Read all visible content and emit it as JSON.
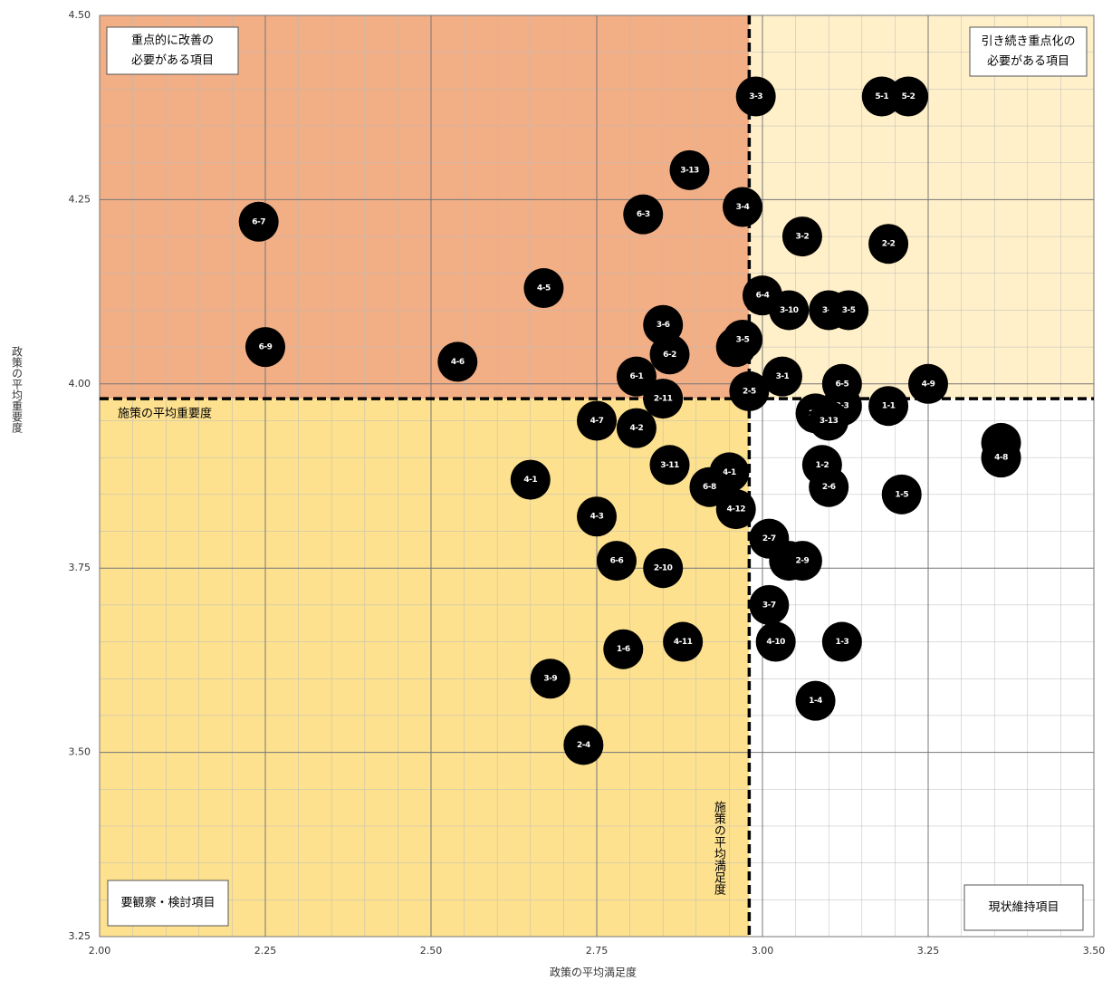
{
  "chart_data": {
    "type": "scatter",
    "xlabel": "政策の平均満足度",
    "ylabel": "政策の平均重要度",
    "xlim": [
      2.0,
      3.5
    ],
    "ylim": [
      3.25,
      4.5
    ],
    "xticks": [
      {
        "value": 2.0,
        "label": "2.00"
      },
      {
        "value": 2.25,
        "label": "2.25"
      },
      {
        "value": 2.5,
        "label": "2.50"
      },
      {
        "value": 2.75,
        "label": "2.75"
      },
      {
        "value": 3.0,
        "label": "3.00"
      },
      {
        "value": 3.25,
        "label": "3.25"
      },
      {
        "value": 3.5,
        "label": "3.50"
      }
    ],
    "yticks": [
      {
        "value": 3.25,
        "label": "3.25"
      },
      {
        "value": 3.5,
        "label": "3.50"
      },
      {
        "value": 3.75,
        "label": "3.75"
      },
      {
        "value": 4.0,
        "label": "4.00"
      },
      {
        "value": 4.25,
        "label": "4.25"
      },
      {
        "value": 4.5,
        "label": "4.50"
      }
    ],
    "grid": true,
    "average_x": 2.98,
    "average_x_label": "施策の平均満足度",
    "average_y": 3.98,
    "average_y_label": "施策の平均重要度",
    "quadrants": {
      "top_left": {
        "lines": [
          "重点的に改善の",
          "必要がある項目"
        ],
        "color": "#f2ae85"
      },
      "top_right": {
        "lines": [
          "引き続き重点化の",
          "必要がある項目"
        ],
        "color": "#fff0c9"
      },
      "bottom_left": {
        "lines": [
          "要観察・検討項目"
        ],
        "color": "#fde18f"
      },
      "bottom_right": {
        "lines": [
          "現状維持項目"
        ],
        "color": "#ffffff"
      }
    },
    "series": [
      {
        "name": "施策",
        "color": "#000000",
        "labels": [
          "3-3",
          "5-1",
          "5-2",
          "3-13",
          "3-4",
          "6-7",
          "6-3",
          "3-2",
          "2-2",
          "4-5",
          "6-4",
          "3-10",
          "3-8",
          "3-5",
          "3-6",
          "6-9",
          "3-3",
          "3-5",
          "6-2",
          "4-6",
          "6-1",
          "3-1",
          "4-9",
          "6-5",
          "2-5",
          "2-11",
          "1-1",
          "2-3",
          "2-1",
          "3-13",
          "4-7",
          "4-2",
          "3-12",
          "4-8",
          "3-11",
          "1-2",
          "4-1",
          "4-1",
          "6-8",
          "2-6",
          "1-5",
          "4-12",
          "4-3",
          "2-7",
          "2-8",
          "2-9",
          "6-6",
          "2-10",
          "3-7",
          "4-10",
          "1-3",
          "4-11",
          "1-6",
          "3-9",
          "1-4",
          "2-4"
        ],
        "x": [
          2.99,
          3.18,
          3.22,
          2.89,
          2.97,
          2.24,
          2.82,
          3.06,
          3.19,
          2.67,
          3.0,
          3.04,
          3.1,
          3.13,
          2.85,
          2.25,
          2.96,
          2.97,
          2.86,
          2.54,
          2.81,
          3.03,
          3.25,
          3.12,
          2.98,
          2.85,
          3.19,
          3.12,
          3.08,
          3.1,
          2.75,
          2.81,
          3.36,
          3.36,
          2.86,
          3.09,
          2.65,
          2.95,
          2.92,
          3.1,
          3.21,
          2.96,
          2.75,
          3.01,
          3.04,
          3.06,
          2.78,
          2.85,
          3.01,
          3.02,
          3.12,
          2.88,
          2.79,
          2.68,
          3.08,
          2.73
        ],
        "values": [
          4.39,
          4.39,
          4.39,
          4.29,
          4.24,
          4.22,
          4.23,
          4.2,
          4.19,
          4.13,
          4.12,
          4.1,
          4.1,
          4.1,
          4.08,
          4.05,
          4.05,
          4.06,
          4.04,
          4.03,
          4.01,
          4.01,
          4.0,
          4.0,
          3.99,
          3.98,
          3.97,
          3.97,
          3.96,
          3.95,
          3.95,
          3.94,
          3.92,
          3.9,
          3.89,
          3.89,
          3.87,
          3.88,
          3.86,
          3.86,
          3.85,
          3.83,
          3.82,
          3.79,
          3.76,
          3.76,
          3.76,
          3.75,
          3.7,
          3.65,
          3.65,
          3.65,
          3.64,
          3.6,
          3.57,
          3.51
        ]
      }
    ]
  }
}
